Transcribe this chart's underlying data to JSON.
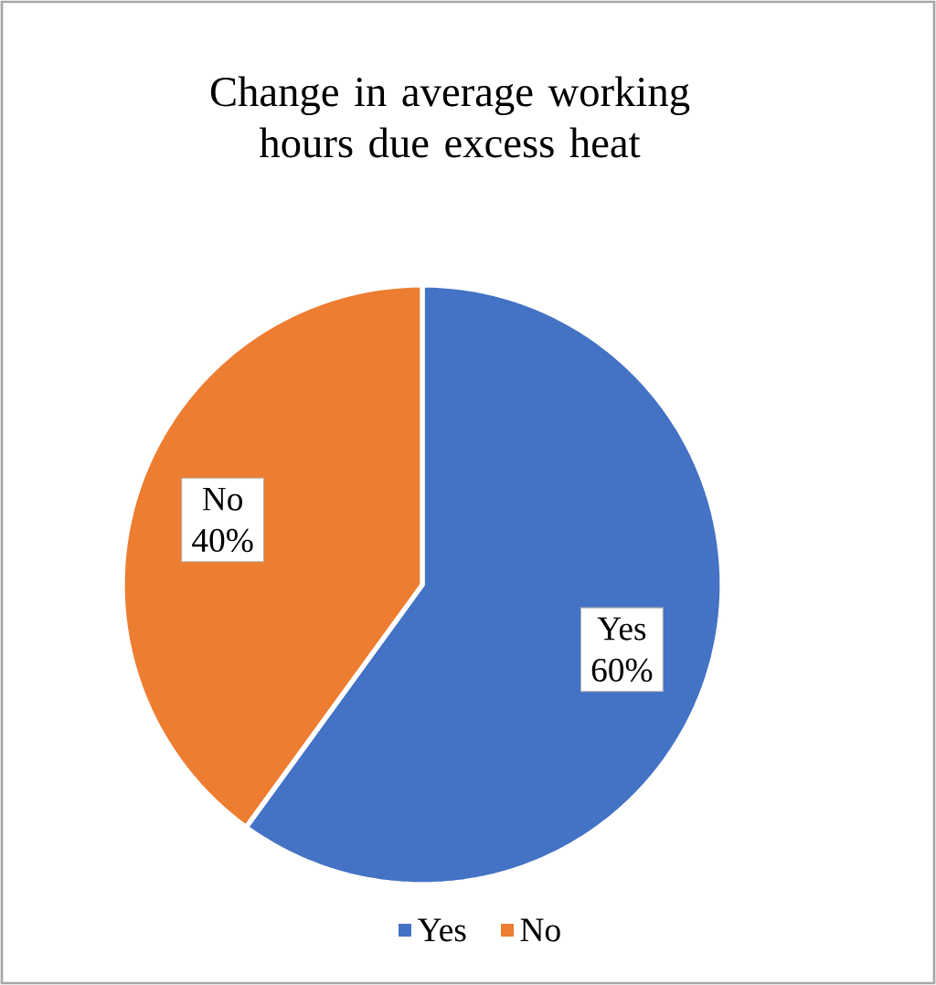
{
  "chart_data": {
    "type": "pie",
    "title": "Change in average working hours due excess heat",
    "categories": [
      "Yes",
      "No"
    ],
    "values": [
      60,
      40
    ],
    "value_labels": [
      "60%",
      "40%"
    ],
    "colors": [
      "#4472c4",
      "#ed7d31"
    ],
    "legend": "bottom"
  }
}
